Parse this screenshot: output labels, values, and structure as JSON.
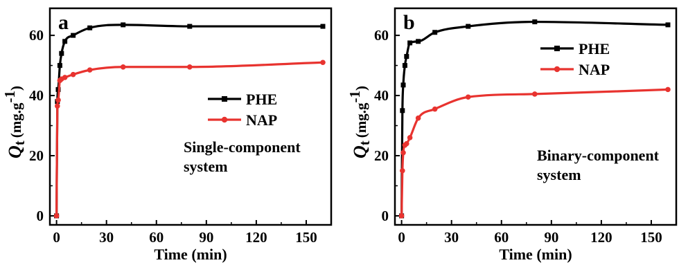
{
  "chart_data": [
    {
      "type": "line",
      "panel_label": "a",
      "xlabel": "Time (min)",
      "ylabel_symbol": "Q",
      "ylabel_sub": "t",
      "ylabel_units": "(mg.g",
      "ylabel_exp": "-1",
      "ylabel_close": ")",
      "xlim": [
        -4,
        165
      ],
      "ylim": [
        -3,
        69
      ],
      "xticks": [
        0,
        30,
        60,
        90,
        120,
        150
      ],
      "yticks": [
        0,
        20,
        40,
        60
      ],
      "annotation_lines": [
        "Single-component",
        "system"
      ],
      "legend_position": "center-right",
      "series": [
        {
          "name": "PHE",
          "color": "#000000",
          "marker": "square",
          "x": [
            0,
            0.5,
            1,
            2,
            3,
            5,
            10,
            20,
            40,
            80,
            160
          ],
          "y": [
            0,
            38,
            42,
            50,
            54,
            58,
            60,
            62.5,
            63.5,
            63,
            63
          ]
        },
        {
          "name": "NAP",
          "color": "#e8332f",
          "marker": "circle",
          "x": [
            0,
            0.5,
            1,
            2,
            3,
            5,
            10,
            20,
            40,
            80,
            160
          ],
          "y": [
            0,
            36.5,
            38.5,
            45,
            45.5,
            46,
            47,
            48.5,
            49.5,
            49.5,
            51
          ]
        }
      ]
    },
    {
      "type": "line",
      "panel_label": "b",
      "xlabel": "Time (min)",
      "ylabel_symbol": "Q",
      "ylabel_sub": "t",
      "ylabel_units": "(mg.g",
      "ylabel_exp": "-1",
      "ylabel_close": ")",
      "xlim": [
        -4,
        165
      ],
      "ylim": [
        -3,
        69
      ],
      "xticks": [
        0,
        30,
        60,
        90,
        120,
        150
      ],
      "yticks": [
        0,
        20,
        40,
        60
      ],
      "annotation_lines": [
        "Binary-component",
        "system"
      ],
      "legend_position": "top-right",
      "series": [
        {
          "name": "PHE",
          "color": "#000000",
          "marker": "square",
          "x": [
            0,
            0.5,
            1,
            2,
            3,
            5,
            10,
            20,
            40,
            80,
            160
          ],
          "y": [
            0,
            35,
            43.5,
            50,
            53,
            57.5,
            58,
            61,
            63,
            64.5,
            63.5
          ]
        },
        {
          "name": "NAP",
          "color": "#e8332f",
          "marker": "circle",
          "x": [
            0,
            0.5,
            1,
            2,
            3,
            5,
            10,
            20,
            40,
            80,
            160
          ],
          "y": [
            0,
            15,
            21,
            23.5,
            24,
            26,
            32.5,
            35.5,
            39.5,
            40.5,
            42
          ]
        }
      ]
    }
  ]
}
